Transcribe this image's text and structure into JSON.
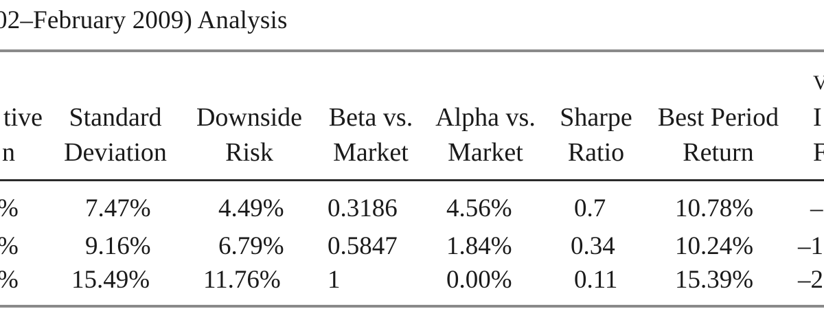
{
  "table": {
    "caption": "02–February 2009) Analysis",
    "headers": [
      {
        "line1": "tive",
        "line2": "n"
      },
      {
        "line1": "Standard",
        "line2": "Deviation"
      },
      {
        "line1": "Downside",
        "line2": "Risk"
      },
      {
        "line1": "Beta vs.",
        "line2": "Market"
      },
      {
        "line1": "Alpha vs.",
        "line2": "Market"
      },
      {
        "line1": "Sharpe",
        "line2": "Ratio"
      },
      {
        "line1": "Best Period",
        "line2": "Return"
      },
      {
        "line0": "V",
        "line1": "I",
        "line2": "F"
      }
    ],
    "rows": [
      [
        "%",
        "7.47%",
        "4.49%",
        "0.3186",
        "4.56%",
        "0.7",
        "10.78%",
        "–"
      ],
      [
        "%",
        "9.16%",
        "6.79%",
        "0.5847",
        "1.84%",
        "0.34",
        "10.24%",
        "–1"
      ],
      [
        "%",
        "15.49%",
        "11.76%",
        "1",
        "0.00%",
        "0.11",
        "15.39%",
        "–2"
      ]
    ]
  }
}
